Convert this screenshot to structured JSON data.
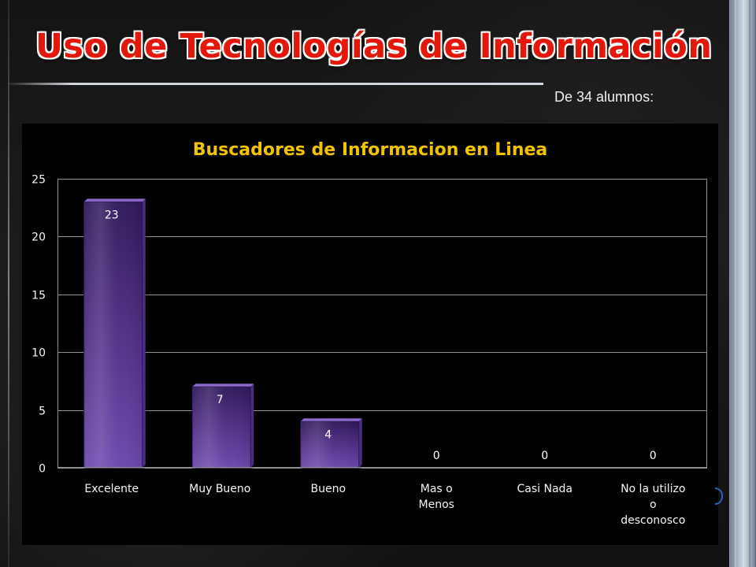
{
  "slide": {
    "title": "Uso de Tecnologías de Información",
    "subtitle": "De 34 alumnos:"
  },
  "chart_data": {
    "type": "bar",
    "title": "Buscadores de Informacion en Linea",
    "categories": [
      [
        "Excelente"
      ],
      [
        "Muy Bueno"
      ],
      [
        "Bueno"
      ],
      [
        "Mas o",
        "Menos"
      ],
      [
        "Casi Nada"
      ],
      [
        "No la utilizo",
        "o",
        "desconosco"
      ]
    ],
    "values": [
      23,
      7,
      4,
      0,
      0,
      0
    ],
    "data_labels": [
      "23",
      "7",
      "4",
      "0",
      "0",
      "0"
    ],
    "xlabel": "",
    "ylabel": "",
    "ylim": [
      0,
      25
    ],
    "y_ticks": [
      0,
      5,
      10,
      15,
      20,
      25
    ],
    "grid": true,
    "legend": "none",
    "colors": {
      "background": "#000000",
      "title": "#f2c300",
      "axis_text": "#f6f6f6",
      "grid": "#8f8f8f",
      "bar_top": "#8c68c8",
      "bar_bottom": "#2f195b",
      "bar_edge": "#2a1750",
      "data_label": "#ffffff"
    }
  }
}
